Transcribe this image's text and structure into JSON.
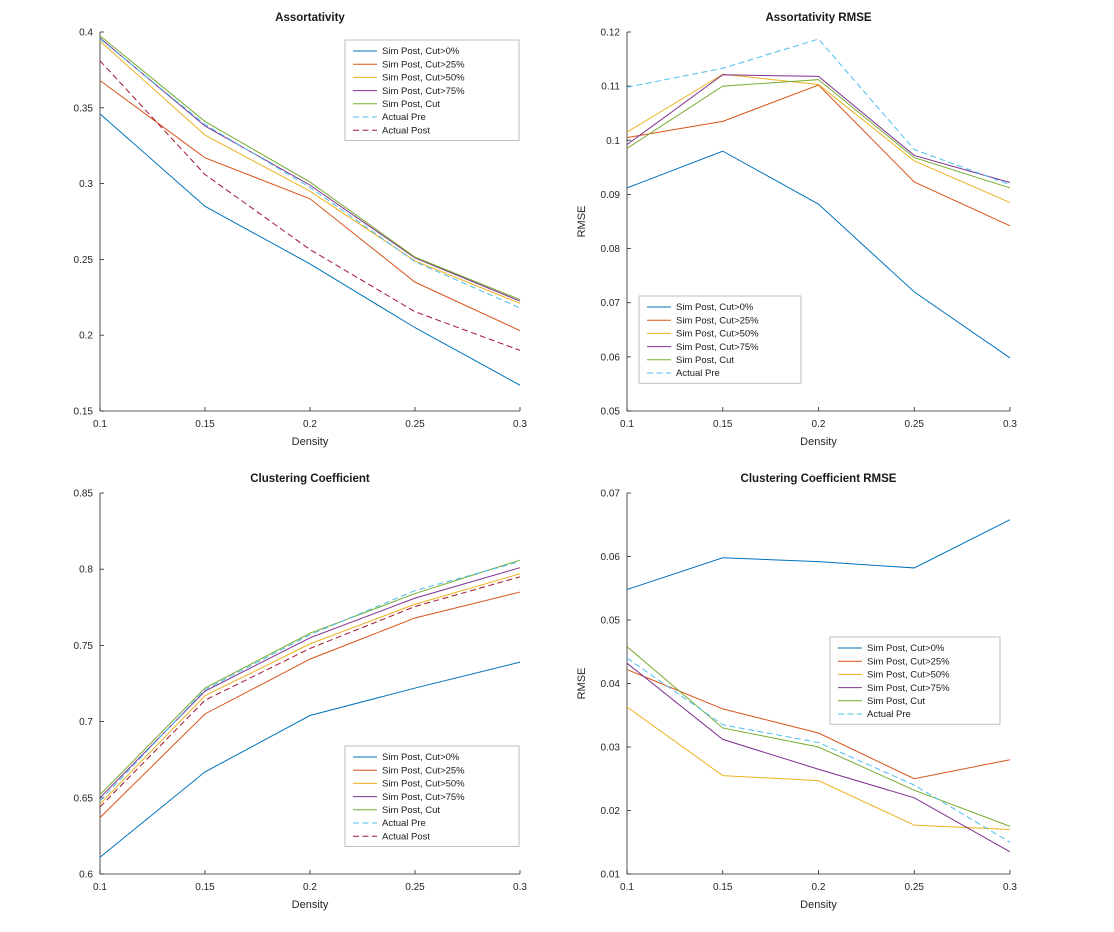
{
  "figure": {
    "background": "#ffffff",
    "axis_color": "#262626",
    "legend_border_color": "#aeaeae"
  },
  "chart_data": [
    {
      "type": "line",
      "title": "Assortativity",
      "xlabel": "Density",
      "ylabel": "",
      "xlim": [
        0.1,
        0.3
      ],
      "ylim": [
        0.15,
        0.4
      ],
      "xticks": [
        0.1,
        0.15,
        0.2,
        0.25,
        0.3
      ],
      "yticks": [
        0.15,
        0.2,
        0.25,
        0.3,
        0.35,
        0.4
      ],
      "x": [
        0.1,
        0.15,
        0.2,
        0.25,
        0.3
      ],
      "grid": false,
      "legend_position": "northeast",
      "series": [
        {
          "name": "Sim Post, Cut>0%",
          "color": "#0072BD",
          "dashed": false,
          "values": [
            0.346,
            0.285,
            0.247,
            0.205,
            0.167
          ]
        },
        {
          "name": "Sim Post, Cut>25%",
          "color": "#D95319",
          "dashed": false,
          "values": [
            0.368,
            0.317,
            0.29,
            0.235,
            0.203
          ]
        },
        {
          "name": "Sim Post, Cut>50%",
          "color": "#EDB120",
          "dashed": false,
          "values": [
            0.394,
            0.332,
            0.295,
            0.249,
            0.221
          ]
        },
        {
          "name": "Sim Post, Cut>75%",
          "color": "#7E2F8E",
          "dashed": false,
          "values": [
            0.396,
            0.338,
            0.299,
            0.251,
            0.2225
          ]
        },
        {
          "name": "Sim Post, Cut",
          "color": "#77AC30",
          "dashed": false,
          "values": [
            0.3975,
            0.341,
            0.301,
            0.2515,
            0.2235
          ]
        },
        {
          "name": "Actual Pre",
          "color": "#4DBEEE",
          "dashed": true,
          "values": [
            0.3955,
            0.339,
            0.2975,
            0.2485,
            0.218
          ]
        },
        {
          "name": "Actual Post",
          "color": "#A2142F",
          "dashed": true,
          "values": [
            0.381,
            0.306,
            0.2565,
            0.2155,
            0.19
          ]
        }
      ]
    },
    {
      "type": "line",
      "title": "Assortativity RMSE",
      "xlabel": "Density",
      "ylabel": "RMSE",
      "xlim": [
        0.1,
        0.3
      ],
      "ylim": [
        0.05,
        0.12
      ],
      "xticks": [
        0.1,
        0.15,
        0.2,
        0.25,
        0.3
      ],
      "yticks": [
        0.05,
        0.06,
        0.07,
        0.08,
        0.09,
        0.1,
        0.11,
        0.12
      ],
      "x": [
        0.1,
        0.15,
        0.2,
        0.25,
        0.3
      ],
      "grid": false,
      "legend_position": "southwest",
      "series": [
        {
          "name": "Sim Post, Cut>0%",
          "color": "#0072BD",
          "dashed": false,
          "values": [
            0.0912,
            0.098,
            0.0882,
            0.072,
            0.0598
          ]
        },
        {
          "name": "Sim Post, Cut>25%",
          "color": "#D95319",
          "dashed": false,
          "values": [
            0.1005,
            0.1035,
            0.1102,
            0.0923,
            0.0842
          ]
        },
        {
          "name": "Sim Post, Cut>50%",
          "color": "#EDB120",
          "dashed": false,
          "values": [
            0.1015,
            0.1122,
            0.1103,
            0.0962,
            0.0885
          ]
        },
        {
          "name": "Sim Post, Cut>75%",
          "color": "#7E2F8E",
          "dashed": false,
          "values": [
            0.0992,
            0.1121,
            0.1118,
            0.0972,
            0.0922
          ]
        },
        {
          "name": "Sim Post, Cut",
          "color": "#77AC30",
          "dashed": false,
          "values": [
            0.0985,
            0.11,
            0.1112,
            0.0968,
            0.0912
          ]
        },
        {
          "name": "Actual Pre",
          "color": "#4DBEEE",
          "dashed": true,
          "values": [
            0.1098,
            0.1133,
            0.1187,
            0.0983,
            0.0918
          ]
        }
      ]
    },
    {
      "type": "line",
      "title": "Clustering Coefficient",
      "xlabel": "Density",
      "ylabel": "",
      "xlim": [
        0.1,
        0.3
      ],
      "ylim": [
        0.6,
        0.85
      ],
      "xticks": [
        0.1,
        0.15,
        0.2,
        0.25,
        0.3
      ],
      "yticks": [
        0.6,
        0.65,
        0.7,
        0.75,
        0.8,
        0.85
      ],
      "x": [
        0.1,
        0.15,
        0.2,
        0.25,
        0.3
      ],
      "grid": false,
      "legend_position": "southeast",
      "series": [
        {
          "name": "Sim Post, Cut>0%",
          "color": "#0072BD",
          "dashed": false,
          "values": [
            0.611,
            0.667,
            0.704,
            0.722,
            0.739
          ]
        },
        {
          "name": "Sim Post, Cut>25%",
          "color": "#D95319",
          "dashed": false,
          "values": [
            0.637,
            0.705,
            0.741,
            0.768,
            0.785
          ]
        },
        {
          "name": "Sim Post, Cut>50%",
          "color": "#EDB120",
          "dashed": false,
          "values": [
            0.646,
            0.717,
            0.751,
            0.777,
            0.797
          ]
        },
        {
          "name": "Sim Post, Cut>75%",
          "color": "#7E2F8E",
          "dashed": false,
          "values": [
            0.65,
            0.72,
            0.755,
            0.781,
            0.801
          ]
        },
        {
          "name": "Sim Post, Cut",
          "color": "#77AC30",
          "dashed": false,
          "values": [
            0.652,
            0.722,
            0.758,
            0.784,
            0.806
          ]
        },
        {
          "name": "Actual Pre",
          "color": "#4DBEEE",
          "dashed": true,
          "values": [
            0.648,
            0.721,
            0.757,
            0.786,
            0.805
          ]
        },
        {
          "name": "Actual Post",
          "color": "#A2142F",
          "dashed": true,
          "values": [
            0.644,
            0.714,
            0.748,
            0.7755,
            0.795
          ]
        }
      ]
    },
    {
      "type": "line",
      "title": "Clustering Coefficient RMSE",
      "xlabel": "Density",
      "ylabel": "RMSE",
      "xlim": [
        0.1,
        0.3
      ],
      "ylim": [
        0.01,
        0.07
      ],
      "xticks": [
        0.1,
        0.15,
        0.2,
        0.25,
        0.3
      ],
      "yticks": [
        0.01,
        0.02,
        0.03,
        0.04,
        0.05,
        0.06,
        0.07
      ],
      "x": [
        0.1,
        0.15,
        0.2,
        0.25,
        0.3
      ],
      "grid": false,
      "legend_position": "east",
      "series": [
        {
          "name": "Sim Post, Cut>0%",
          "color": "#0072BD",
          "dashed": false,
          "values": [
            0.0548,
            0.0598,
            0.0592,
            0.0582,
            0.0658
          ]
        },
        {
          "name": "Sim Post, Cut>25%",
          "color": "#D95319",
          "dashed": false,
          "values": [
            0.0422,
            0.036,
            0.0322,
            0.025,
            0.028
          ]
        },
        {
          "name": "Sim Post, Cut>50%",
          "color": "#EDB120",
          "dashed": false,
          "values": [
            0.0363,
            0.0255,
            0.0247,
            0.0177,
            0.017
          ]
        },
        {
          "name": "Sim Post, Cut>75%",
          "color": "#7E2F8E",
          "dashed": false,
          "values": [
            0.0432,
            0.0312,
            0.0265,
            0.022,
            0.0135
          ]
        },
        {
          "name": "Sim Post, Cut",
          "color": "#77AC30",
          "dashed": false,
          "values": [
            0.0458,
            0.033,
            0.03,
            0.0232,
            0.0175
          ]
        },
        {
          "name": "Actual Pre",
          "color": "#4DBEEE",
          "dashed": true,
          "values": [
            0.044,
            0.0335,
            0.0307,
            0.024,
            0.015
          ]
        }
      ]
    }
  ]
}
